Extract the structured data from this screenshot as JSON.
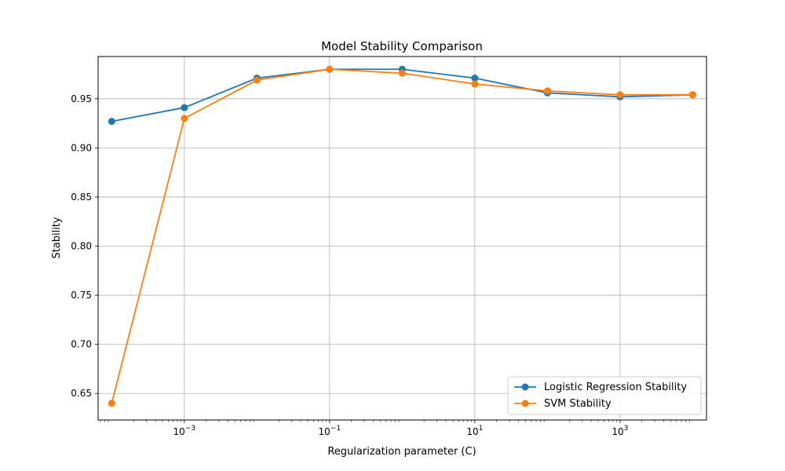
{
  "chart_data": {
    "type": "line",
    "title": "Model Stability Comparison",
    "xlabel": "Regularization parameter (C)",
    "ylabel": "Stability",
    "x_scale": "log",
    "x": [
      0.0001,
      0.001,
      0.01,
      0.1,
      1,
      10,
      100,
      1000,
      10000
    ],
    "xlim": [
      6.5e-05,
      15500
    ],
    "ylim": [
      0.623,
      0.993
    ],
    "grid": true,
    "legend_position": "lower-right",
    "x_ticks": [
      {
        "value": 0.001,
        "base": "10",
        "exp": "−3"
      },
      {
        "value": 0.1,
        "base": "10",
        "exp": "−1"
      },
      {
        "value": 10,
        "base": "10",
        "exp": "1"
      },
      {
        "value": 1000,
        "base": "10",
        "exp": "3"
      }
    ],
    "y_ticks": [
      {
        "value": 0.65,
        "label": "0.65"
      },
      {
        "value": 0.7,
        "label": "0.70"
      },
      {
        "value": 0.75,
        "label": "0.75"
      },
      {
        "value": 0.8,
        "label": "0.80"
      },
      {
        "value": 0.85,
        "label": "0.85"
      },
      {
        "value": 0.9,
        "label": "0.90"
      },
      {
        "value": 0.95,
        "label": "0.95"
      }
    ],
    "series": [
      {
        "name": "Logistic Regression Stability",
        "color": "#1f77b4",
        "values": [
          0.927,
          0.941,
          0.971,
          0.98,
          0.98,
          0.971,
          0.956,
          0.952,
          0.954
        ]
      },
      {
        "name": "SVM Stability",
        "color": "#ff7f0e",
        "values": [
          0.64,
          0.93,
          0.969,
          0.98,
          0.976,
          0.965,
          0.958,
          0.954,
          0.954
        ]
      }
    ]
  }
}
